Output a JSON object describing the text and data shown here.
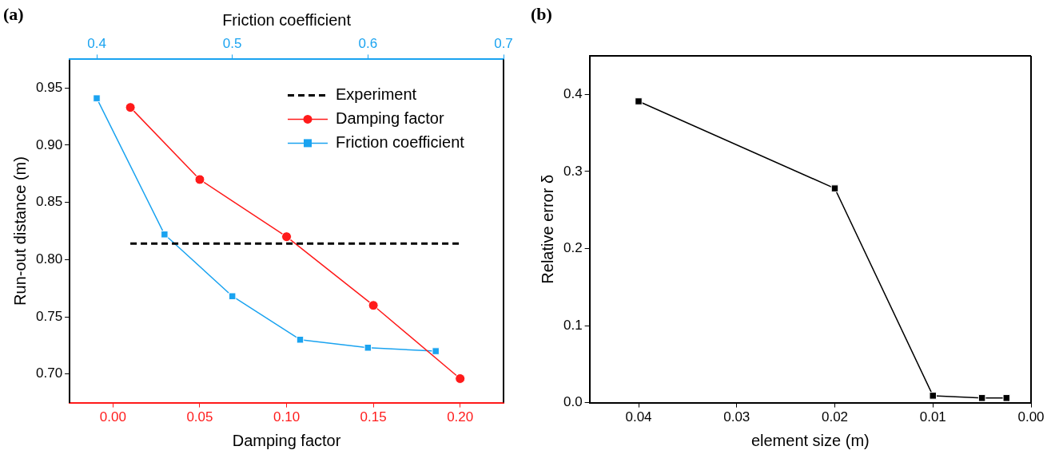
{
  "chart_data": [
    {
      "type": "line",
      "title": "(a)",
      "xlabel": "Damping factor",
      "x2label": "Friction coefficient",
      "ylabel": "Run-out distance (m)",
      "xlim": [
        -0.025,
        0.225
      ],
      "xticks": [
        {
          "value": 0,
          "label": "0.00"
        },
        0.05,
        {
          "value": 0.1,
          "label": "0.10"
        },
        0.15,
        {
          "value": 0.2,
          "label": "0.20"
        }
      ],
      "x2lim": [
        0.38,
        0.7
      ],
      "x2ticks": [
        0.4,
        0.5,
        0.6,
        0.7
      ],
      "ylim": [
        0.675,
        0.975
      ],
      "yticks": [
        {
          "value": 0.7,
          "label": "0.70"
        },
        0.75,
        {
          "value": 0.8,
          "label": "0.80"
        },
        0.85,
        {
          "value": 0.9,
          "label": "0.90"
        },
        0.95
      ],
      "legend": "top right",
      "grid": false,
      "series": [
        {
          "name": "Experiment",
          "color": "#000000",
          "line_style": "dashed",
          "marker": "none",
          "x": [
            0.01,
            0.2
          ],
          "values": [
            0.814,
            0.814
          ]
        },
        {
          "name": "Damping factor",
          "color": "#ff1a1a",
          "marker": "circle",
          "x": [
            0.01,
            0.05,
            0.1,
            0.15,
            0.2
          ],
          "values": [
            0.933,
            0.87,
            0.82,
            0.76,
            0.696
          ]
        },
        {
          "name": "Friction coefficient",
          "color": "#1aa3f0",
          "marker": "square",
          "axis": "x2",
          "x": [
            0.4,
            0.45,
            0.5,
            0.55,
            0.6,
            0.65
          ],
          "values": [
            0.941,
            0.822,
            0.768,
            0.73,
            0.723,
            0.72
          ]
        }
      ]
    },
    {
      "type": "line",
      "title": "(b)",
      "xlabel": "element size (m)",
      "ylabel": "Relative error δ",
      "xlim": [
        0.045,
        0
      ],
      "xticks": [
        0.04,
        0.03,
        0.02,
        0.01,
        {
          "value": 0,
          "label": "0.00"
        }
      ],
      "ylim": [
        0,
        0.45
      ],
      "yticks": [
        {
          "value": 0,
          "label": "0.0"
        },
        0.1,
        0.2,
        0.3,
        0.4
      ],
      "grid": false,
      "marker": "square",
      "series": [
        {
          "color": "#000000",
          "x": [
            0.04,
            0.02,
            0.01,
            0.005,
            0.0025
          ],
          "values": [
            0.391,
            0.278,
            0.009,
            0.006,
            0.006
          ]
        }
      ]
    }
  ]
}
